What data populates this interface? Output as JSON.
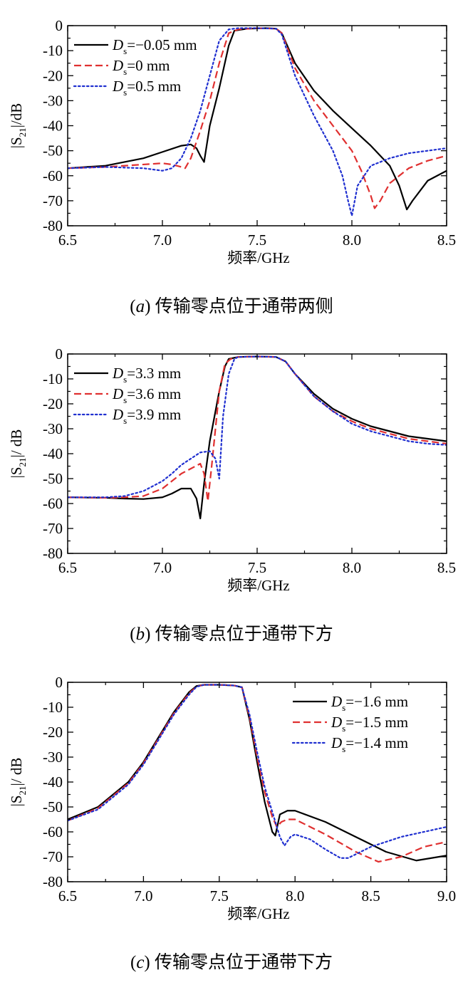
{
  "chart_data": [
    {
      "type": "line",
      "panel": "a",
      "caption": "(a) 传输零点位于通带两侧",
      "caption_letter": "a",
      "caption_text": "传输零点位于通带两侧",
      "xlabel": "频率/GHz",
      "ylabel": "|S21|/dB",
      "ylabel_parts": [
        "|S",
        "21",
        "|/dB"
      ],
      "xlim": [
        6.5,
        8.5
      ],
      "ylim": [
        -80,
        0
      ],
      "xticks": [
        "6.5",
        "7.0",
        "7.5",
        "8.0",
        "8.5"
      ],
      "yticks": [
        "0",
        "-10",
        "-20",
        "-30",
        "-40",
        "-50",
        "-60",
        "-70",
        "-80"
      ],
      "grid": false,
      "legend_position": "top-left",
      "series": [
        {
          "name": "Ds=−0.05 mm",
          "label_main": "D",
          "label_sub": "s",
          "label_value": "=−0.05 mm",
          "color": "#000000",
          "dash": "solid",
          "x": [
            6.5,
            6.7,
            6.9,
            7.0,
            7.1,
            7.15,
            7.18,
            7.2,
            7.22,
            7.25,
            7.3,
            7.35,
            7.38,
            7.45,
            7.55,
            7.6,
            7.63,
            7.7,
            7.8,
            7.9,
            8.0,
            8.1,
            8.2,
            8.25,
            8.29,
            8.32,
            8.4,
            8.5
          ],
          "y": [
            -57,
            -56,
            -53,
            -50.5,
            -48,
            -47.5,
            -49,
            -52,
            -54.5,
            -40,
            -25,
            -8,
            -2,
            -1.2,
            -1,
            -1.2,
            -3,
            -15,
            -26,
            -34,
            -41,
            -48,
            -56,
            -64,
            -73.5,
            -70,
            -62,
            -58
          ]
        },
        {
          "name": "Ds=0 mm",
          "label_main": "D",
          "label_sub": "s",
          "label_value": "=0 mm",
          "color": "#e03030",
          "dash": "dashed",
          "x": [
            6.5,
            6.7,
            6.9,
            7.0,
            7.05,
            7.1,
            7.12,
            7.15,
            7.2,
            7.25,
            7.3,
            7.35,
            7.4,
            7.5,
            7.6,
            7.63,
            7.7,
            7.8,
            7.9,
            8.0,
            8.05,
            8.1,
            8.12,
            8.15,
            8.2,
            8.3,
            8.4,
            8.5
          ],
          "y": [
            -57,
            -56.5,
            -55.5,
            -55,
            -55.5,
            -56.5,
            -57,
            -53,
            -42,
            -30,
            -15,
            -3,
            -1.5,
            -1,
            -1.2,
            -3,
            -17,
            -30,
            -40,
            -50,
            -58,
            -68,
            -73,
            -70,
            -63,
            -57,
            -54,
            -52
          ]
        },
        {
          "name": "Ds=0.5 mm",
          "label_main": "D",
          "label_sub": "s",
          "label_value": "=0.5 mm",
          "color": "#2030d0",
          "dash": "dotted",
          "x": [
            6.5,
            6.7,
            6.9,
            7.0,
            7.05,
            7.1,
            7.15,
            7.2,
            7.25,
            7.3,
            7.35,
            7.4,
            7.5,
            7.6,
            7.63,
            7.7,
            7.8,
            7.9,
            7.95,
            7.98,
            8.0,
            8.03,
            8.1,
            8.2,
            8.3,
            8.4,
            8.5
          ],
          "y": [
            -57,
            -56.5,
            -57,
            -58,
            -57,
            -53,
            -45,
            -34,
            -20,
            -6,
            -1.5,
            -1,
            -1,
            -1.2,
            -3.5,
            -20,
            -36,
            -50,
            -60,
            -70,
            -76,
            -64,
            -56,
            -53,
            -51,
            -50,
            -49
          ]
        }
      ]
    },
    {
      "type": "line",
      "panel": "b",
      "caption": "(b) 传输零点位于通带下方",
      "caption_letter": "b",
      "caption_text": "传输零点位于通带下方",
      "xlabel": "频率/GHz",
      "ylabel": "|S21|/ dB",
      "ylabel_parts": [
        "|S",
        "21",
        "|/ dB"
      ],
      "xlim": [
        6.5,
        8.5
      ],
      "ylim": [
        -80,
        0
      ],
      "xticks": [
        "6.5",
        "7.0",
        "7.5",
        "8.0",
        "8.5"
      ],
      "yticks": [
        "0",
        "-10",
        "-20",
        "-30",
        "-40",
        "-50",
        "-60",
        "-70",
        "-80"
      ],
      "grid": false,
      "legend_position": "top-left",
      "series": [
        {
          "name": "Ds=3.3 mm",
          "label_main": "D",
          "label_sub": "s",
          "label_value": "=3.3 mm",
          "color": "#000000",
          "dash": "solid",
          "x": [
            6.5,
            6.7,
            6.8,
            6.9,
            7.0,
            7.05,
            7.1,
            7.15,
            7.18,
            7.2,
            7.22,
            7.25,
            7.3,
            7.33,
            7.35,
            7.4,
            7.5,
            7.6,
            7.65,
            7.7,
            7.8,
            7.9,
            8.0,
            8.1,
            8.2,
            8.3,
            8.4,
            8.5
          ],
          "y": [
            -57.5,
            -57.7,
            -58,
            -58.2,
            -57.5,
            -56,
            -54,
            -54,
            -58,
            -66,
            -52,
            -35,
            -15,
            -5,
            -2,
            -1.2,
            -1,
            -1.2,
            -3,
            -8,
            -16,
            -22,
            -26,
            -29,
            -31,
            -33,
            -34,
            -35
          ]
        },
        {
          "name": "Ds=3.6 mm",
          "label_main": "D",
          "label_sub": "s",
          "label_value": "=3.6 mm",
          "color": "#e03030",
          "dash": "dashed",
          "x": [
            6.5,
            6.7,
            6.8,
            6.9,
            7.0,
            7.05,
            7.1,
            7.15,
            7.2,
            7.22,
            7.24,
            7.26,
            7.28,
            7.3,
            7.33,
            7.36,
            7.4,
            7.5,
            7.6,
            7.65,
            7.7,
            7.8,
            7.9,
            8.0,
            8.1,
            8.2,
            8.3,
            8.4,
            8.5
          ],
          "y": [
            -57.5,
            -57.7,
            -57.5,
            -57,
            -54,
            -51,
            -48,
            -46,
            -44,
            -48,
            -59,
            -45,
            -30,
            -15,
            -4,
            -2,
            -1.2,
            -1,
            -1.2,
            -3,
            -8,
            -17,
            -23,
            -27,
            -30,
            -32,
            -34,
            -35,
            -36
          ]
        },
        {
          "name": "Ds=3.9 mm",
          "label_main": "D",
          "label_sub": "s",
          "label_value": "=3.9 mm",
          "color": "#2030d0",
          "dash": "dotted",
          "x": [
            6.5,
            6.7,
            6.8,
            6.9,
            7.0,
            7.05,
            7.1,
            7.15,
            7.2,
            7.25,
            7.28,
            7.3,
            7.32,
            7.35,
            7.38,
            7.4,
            7.5,
            7.6,
            7.65,
            7.7,
            7.8,
            7.9,
            8.0,
            8.1,
            8.2,
            8.3,
            8.4,
            8.5
          ],
          "y": [
            -57.5,
            -57.5,
            -57,
            -55,
            -51,
            -48,
            -44.5,
            -42,
            -39.5,
            -39,
            -42,
            -50,
            -25,
            -8,
            -2,
            -1.2,
            -1,
            -1.2,
            -3,
            -8,
            -17,
            -23,
            -28,
            -31,
            -33,
            -35,
            -36,
            -36.5
          ]
        }
      ]
    },
    {
      "type": "line",
      "panel": "c",
      "caption": "(c) 传输零点位于通带下方",
      "caption_letter": "c",
      "caption_text": "传输零点位于通带下方",
      "xlabel": "频率/GHz",
      "ylabel": "|S21|/ dB",
      "ylabel_parts": [
        "|S",
        "21",
        "|/ dB"
      ],
      "xlim": [
        6.5,
        9.0
      ],
      "ylim": [
        -80,
        0
      ],
      "xticks": [
        "6.5",
        "7.0",
        "7.5",
        "8.0",
        "8.5",
        "9.0"
      ],
      "yticks": [
        "0",
        "-10",
        "-20",
        "-30",
        "-40",
        "-50",
        "-60",
        "-70",
        "-80"
      ],
      "grid": false,
      "legend_position": "top-right",
      "series": [
        {
          "name": "Ds=−1.6 mm",
          "label_main": "D",
          "label_sub": "s",
          "label_value": "=−1.6 mm",
          "color": "#000000",
          "dash": "solid",
          "x": [
            6.5,
            6.7,
            6.9,
            7.0,
            7.1,
            7.2,
            7.3,
            7.35,
            7.4,
            7.5,
            7.6,
            7.65,
            7.7,
            7.75,
            7.8,
            7.85,
            7.87,
            7.9,
            7.95,
            8.0,
            8.2,
            8.4,
            8.6,
            8.8,
            9.0
          ],
          "y": [
            -55,
            -50,
            -40,
            -32,
            -22,
            -12,
            -4,
            -1.5,
            -1,
            -1,
            -1.3,
            -2,
            -15,
            -32,
            -48,
            -60,
            -61.5,
            -53,
            -51.5,
            -51.5,
            -56,
            -62,
            -68,
            -71.5,
            -69.5
          ]
        },
        {
          "name": "Ds=−1.5 mm",
          "label_main": "D",
          "label_sub": "s",
          "label_value": "=−1.5 mm",
          "color": "#e03030",
          "dash": "dashed",
          "x": [
            6.5,
            6.7,
            6.9,
            7.0,
            7.1,
            7.2,
            7.3,
            7.35,
            7.4,
            7.5,
            7.6,
            7.65,
            7.7,
            7.75,
            7.8,
            7.85,
            7.88,
            7.91,
            7.95,
            8.0,
            8.2,
            8.4,
            8.55,
            8.7,
            8.85,
            9.0
          ],
          "y": [
            -55.5,
            -50.5,
            -40.5,
            -32.5,
            -22.5,
            -12.5,
            -4.5,
            -1.7,
            -1,
            -1,
            -1.3,
            -2,
            -14,
            -30,
            -44,
            -54,
            -58,
            -56,
            -55,
            -55,
            -61,
            -68,
            -72,
            -70,
            -66,
            -64
          ]
        },
        {
          "name": "Ds=−1.4 mm",
          "label_main": "D",
          "label_sub": "s",
          "label_value": "=−1.4 mm",
          "color": "#2030d0",
          "dash": "dotted",
          "x": [
            6.5,
            6.7,
            6.9,
            7.0,
            7.1,
            7.2,
            7.3,
            7.35,
            7.4,
            7.5,
            7.6,
            7.65,
            7.7,
            7.75,
            7.8,
            7.85,
            7.9,
            7.93,
            7.97,
            8.0,
            8.1,
            8.2,
            8.3,
            8.35,
            8.5,
            8.7,
            9.0
          ],
          "y": [
            -55.5,
            -51,
            -41,
            -33,
            -23,
            -13,
            -5,
            -1.8,
            -1,
            -1,
            -1.3,
            -2,
            -13,
            -28,
            -42,
            -52,
            -62,
            -65.5,
            -62,
            -61,
            -63,
            -67,
            -70.5,
            -70.5,
            -66,
            -62,
            -58
          ]
        }
      ]
    }
  ]
}
